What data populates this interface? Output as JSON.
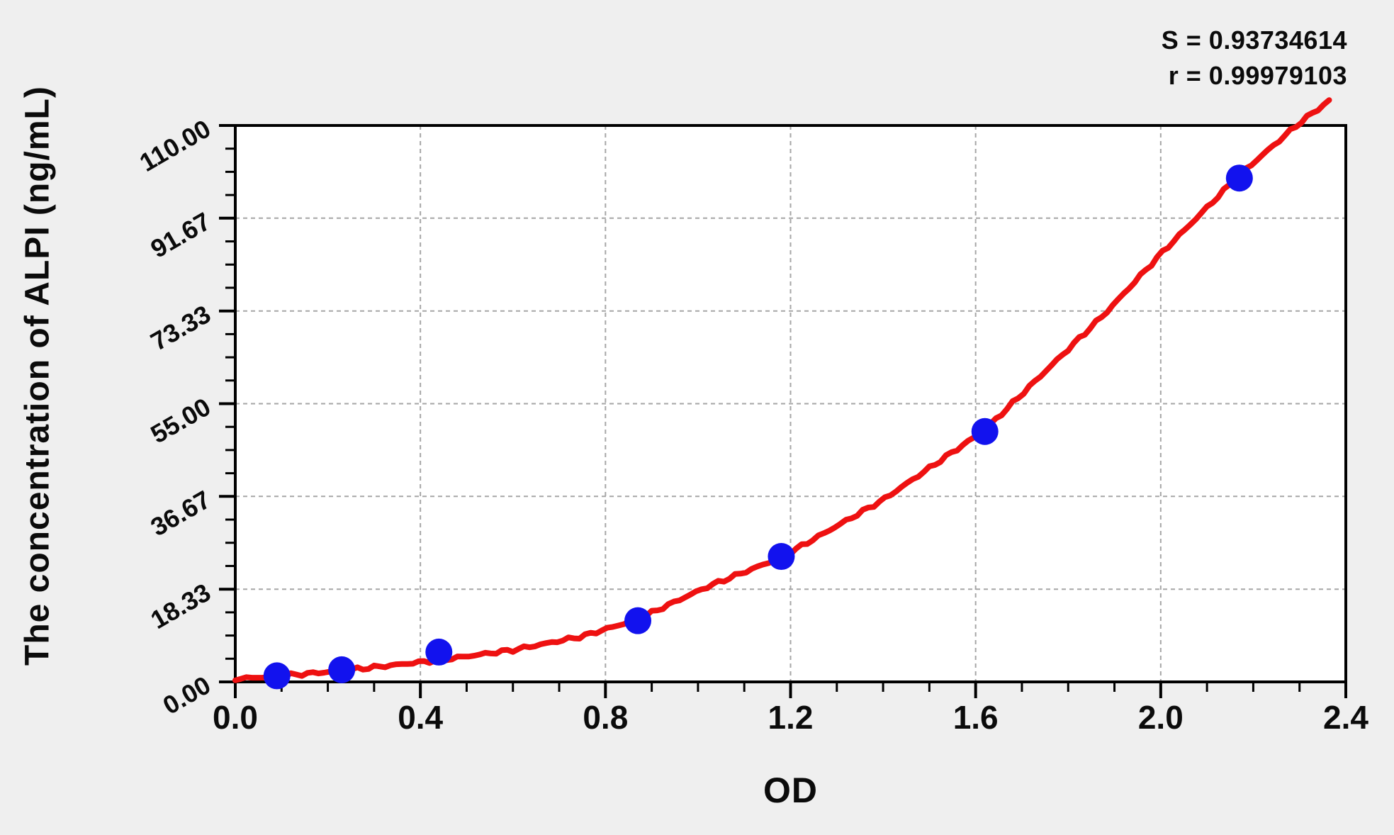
{
  "figure": {
    "background_color": "#efefef",
    "plot_background_color": "#ffffff",
    "axis_color": "#000000"
  },
  "chart_data": {
    "type": "scatter",
    "title": "",
    "xlabel": "OD",
    "ylabel": "The concentration of  ALPI (ng/mL)",
    "xlim": [
      0,
      2.4
    ],
    "ylim": [
      0,
      110
    ],
    "x_tick_labels": [
      "0.0",
      "0.4",
      "0.8",
      "1.2",
      "1.6",
      "2.0",
      "2.4"
    ],
    "y_tick_labels": [
      "0.00",
      "18.33",
      "36.67",
      "55.00",
      "73.33",
      "91.67",
      "110.00"
    ],
    "x_minor_divisions_per_major": 4,
    "y_minor_divisions_per_major": 4,
    "grid": "dashed gridlines at major ticks only",
    "legend_position": "none",
    "stats": {
      "s_line": "S = 0.93734614",
      "r_line": "r = 0.99979103",
      "S": "0.93734614",
      "r": "0.99979103"
    },
    "series": [
      {
        "name": "standard-points",
        "type": "scatter",
        "marker": "circle",
        "color": "#1212ee",
        "points": [
          [
            0.09,
            1.2
          ],
          [
            0.23,
            2.4
          ],
          [
            0.44,
            5.9
          ],
          [
            0.87,
            12.1
          ],
          [
            1.18,
            24.8
          ],
          [
            1.62,
            49.5
          ],
          [
            2.17,
            99.6
          ]
        ]
      },
      {
        "name": "fitted-curve",
        "type": "line",
        "color": "#ee1111",
        "points": [
          [
            0.0,
            0.6
          ],
          [
            0.1,
            1.2
          ],
          [
            0.23,
            2.2
          ],
          [
            0.44,
            4.3
          ],
          [
            0.6,
            6.3
          ],
          [
            0.75,
            9.0
          ],
          [
            0.87,
            12.4
          ],
          [
            1.02,
            18.8
          ],
          [
            1.18,
            24.6
          ],
          [
            1.4,
            36.0
          ],
          [
            1.62,
            49.8
          ],
          [
            1.885,
            73.3
          ],
          [
            2.0,
            84.6
          ],
          [
            2.17,
            100.2
          ],
          [
            2.3,
            110.5
          ],
          [
            2.37,
            115.3
          ]
        ]
      }
    ],
    "colors": {
      "point": "#1212ee",
      "curve": "#ee1111",
      "grid": "#a6a6a6",
      "axis": "#000000"
    }
  }
}
